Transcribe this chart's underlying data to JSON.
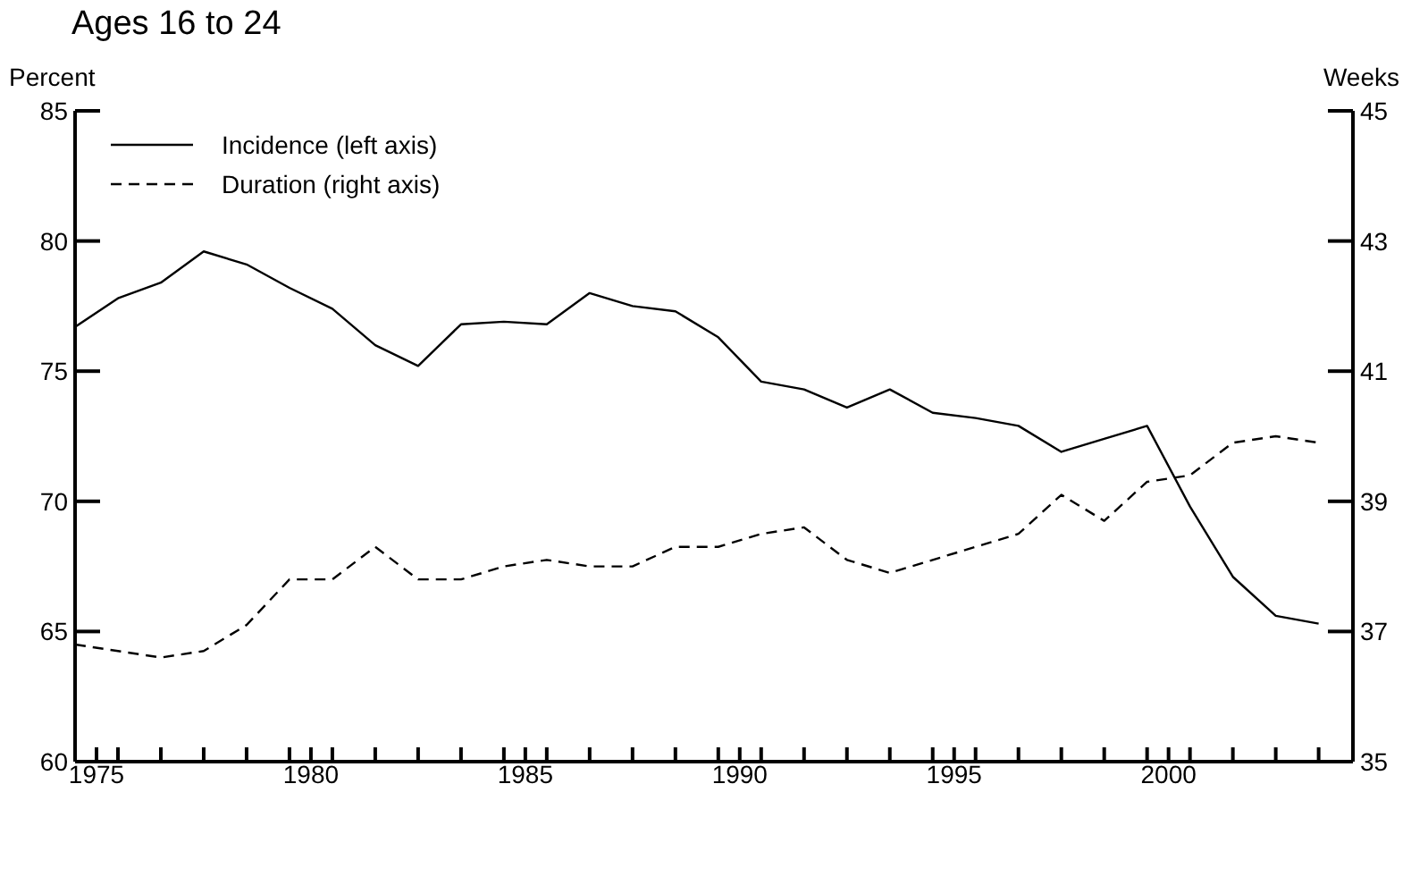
{
  "chart_data": {
    "type": "line",
    "title": "Ages 16 to 24",
    "ylabel": "Percent",
    "y2label": "Weeks",
    "legend": "top left",
    "marker": "none",
    "x": [
      1974.5,
      1975.5,
      1976.5,
      1977.5,
      1978.5,
      1979.5,
      1980.5,
      1981.5,
      1982.5,
      1983.5,
      1984.5,
      1985.5,
      1986.5,
      1987.5,
      1988.5,
      1989.5,
      1990.5,
      1991.5,
      1992.5,
      1993.5,
      1994.5,
      1995.5,
      1996.5,
      1997.5,
      1998.5,
      1999.5,
      2000.5,
      2001.5,
      2002.5,
      2003.5
    ],
    "series": [
      {
        "name": "Incidence (left axis)",
        "color": "#000000",
        "line_style": "solid",
        "values": [
          76.7,
          77.8,
          78.4,
          79.6,
          79.1,
          78.2,
          77.4,
          76.0,
          75.2,
          76.8,
          76.9,
          76.8,
          78.0,
          77.5,
          77.3,
          76.3,
          74.6,
          74.3,
          73.6,
          74.3,
          73.4,
          73.2,
          72.9,
          71.9,
          72.4,
          72.9,
          69.8,
          67.1,
          65.6,
          65.3
        ]
      },
      {
        "name": "Duration (right axis)",
        "color": "#000000",
        "line_style": "dashed",
        "axis": "y2",
        "values": [
          36.8,
          36.7,
          36.6,
          36.7,
          37.1,
          37.8,
          37.8,
          38.3,
          37.8,
          37.8,
          38.0,
          38.1,
          38.0,
          38.0,
          38.3,
          38.3,
          38.5,
          38.6,
          38.1,
          37.9,
          38.1,
          38.3,
          38.5,
          39.1,
          38.7,
          39.3,
          39.4,
          39.9,
          40.0,
          39.9
        ]
      }
    ],
    "xlim": [
      1974.5,
      2004.3
    ],
    "xticks": [
      1975,
      {
        "value": 1975.5,
        "label": null
      },
      {
        "value": 1976.5,
        "label": null
      },
      {
        "value": 1977.5,
        "label": null
      },
      {
        "value": 1978.5,
        "label": null
      },
      {
        "value": 1979.5,
        "label": null
      },
      1980,
      {
        "value": 1980.5,
        "label": null
      },
      {
        "value": 1981.5,
        "label": null
      },
      {
        "value": 1982.5,
        "label": null
      },
      {
        "value": 1983.5,
        "label": null
      },
      {
        "value": 1984.5,
        "label": null
      },
      1985,
      {
        "value": 1985.5,
        "label": null
      },
      {
        "value": 1986.5,
        "label": null
      },
      {
        "value": 1987.5,
        "label": null
      },
      {
        "value": 1988.5,
        "label": null
      },
      {
        "value": 1989.5,
        "label": null
      },
      1990,
      {
        "value": 1990.5,
        "label": null
      },
      {
        "value": 1991.5,
        "label": null
      },
      {
        "value": 1992.5,
        "label": null
      },
      {
        "value": 1993.5,
        "label": null
      },
      {
        "value": 1994.5,
        "label": null
      },
      1995,
      {
        "value": 1995.5,
        "label": null
      },
      {
        "value": 1996.5,
        "label": null
      },
      {
        "value": 1997.5,
        "label": null
      },
      {
        "value": 1998.5,
        "label": null
      },
      {
        "value": 1999.5,
        "label": null
      },
      2000,
      {
        "value": 2000.5,
        "label": null
      },
      {
        "value": 2001.5,
        "label": null
      },
      {
        "value": 2002.5,
        "label": null
      },
      {
        "value": 2003.5,
        "label": null
      }
    ],
    "ylim": [
      60,
      85
    ],
    "yticks": [
      60,
      65,
      70,
      75,
      80,
      85
    ],
    "y2lim": [
      35,
      45
    ],
    "y2ticks": [
      35,
      37,
      39,
      41,
      43,
      45
    ]
  }
}
